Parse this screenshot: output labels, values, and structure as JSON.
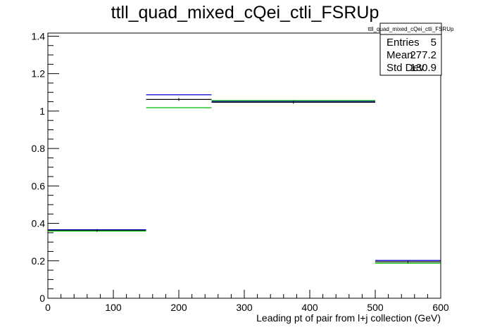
{
  "chart_data": {
    "type": "bar",
    "title": "ttll_quad_mixed_cQei_ctli_FSRUp",
    "xlabel": "Leading pt of pair from l+j collection (GeV)",
    "ylabel": "",
    "xlim": [
      0,
      600
    ],
    "ylim": [
      0,
      1.4167
    ],
    "x_ticks": [
      0,
      100,
      200,
      300,
      400,
      500,
      600
    ],
    "y_ticks": [
      0,
      0.2,
      0.4,
      0.6,
      0.8,
      1,
      1.2,
      1.4
    ],
    "x_tick_labels": [
      "0",
      "100",
      "200",
      "300",
      "400",
      "500",
      "600"
    ],
    "y_tick_labels": [
      "0",
      "0.2",
      "0.4",
      "0.6",
      "0.8",
      "1",
      "1.2",
      "1.4"
    ],
    "bin_edges": [
      0,
      150,
      250,
      500,
      600
    ],
    "series": [
      {
        "color": "#0000cc",
        "values": [
          0.366,
          1.087,
          1.052,
          0.202
        ]
      },
      {
        "color": "#000000",
        "values": [
          0.362,
          1.062,
          1.047,
          0.195
        ]
      },
      {
        "color": "#00bb00",
        "values": [
          0.359,
          1.018,
          1.056,
          0.187
        ]
      }
    ],
    "stats_box": {
      "title": "ttll_quad_mixed_cQei_ctli_FSRUp",
      "rows": [
        {
          "label": "Entries",
          "value": "5"
        },
        {
          "label": "Mean",
          "value": "277.2"
        },
        {
          "label": "Std Dev",
          "value": "130.9"
        }
      ]
    }
  }
}
